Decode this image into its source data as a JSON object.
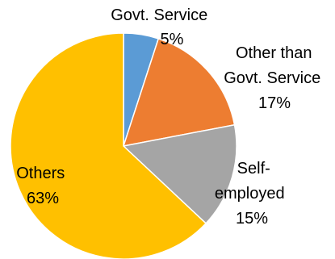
{
  "chart_data": {
    "type": "pie",
    "title": "",
    "start_angle_deg": 0,
    "direction": "clockwise",
    "slices": [
      {
        "label": "Govt. Service",
        "value": 5,
        "value_label": "5%",
        "color": "#5B9BD5"
      },
      {
        "label": "Other than Govt. Service",
        "value": 17,
        "value_label": "17%",
        "color": "#ED7D31"
      },
      {
        "label": "Self-employed",
        "value": 15,
        "value_label": "15%",
        "color": "#A5A5A5"
      },
      {
        "label": "Others",
        "value": 63,
        "value_label": "63%",
        "color": "#FFC000"
      }
    ],
    "label_text": [
      [
        "Govt. Service",
        "5%"
      ],
      [
        "Other than",
        "Govt. Service",
        "17%"
      ],
      [
        "Self-",
        "employed",
        "15%"
      ],
      [
        "Others",
        "63%"
      ]
    ],
    "legend": "none"
  }
}
